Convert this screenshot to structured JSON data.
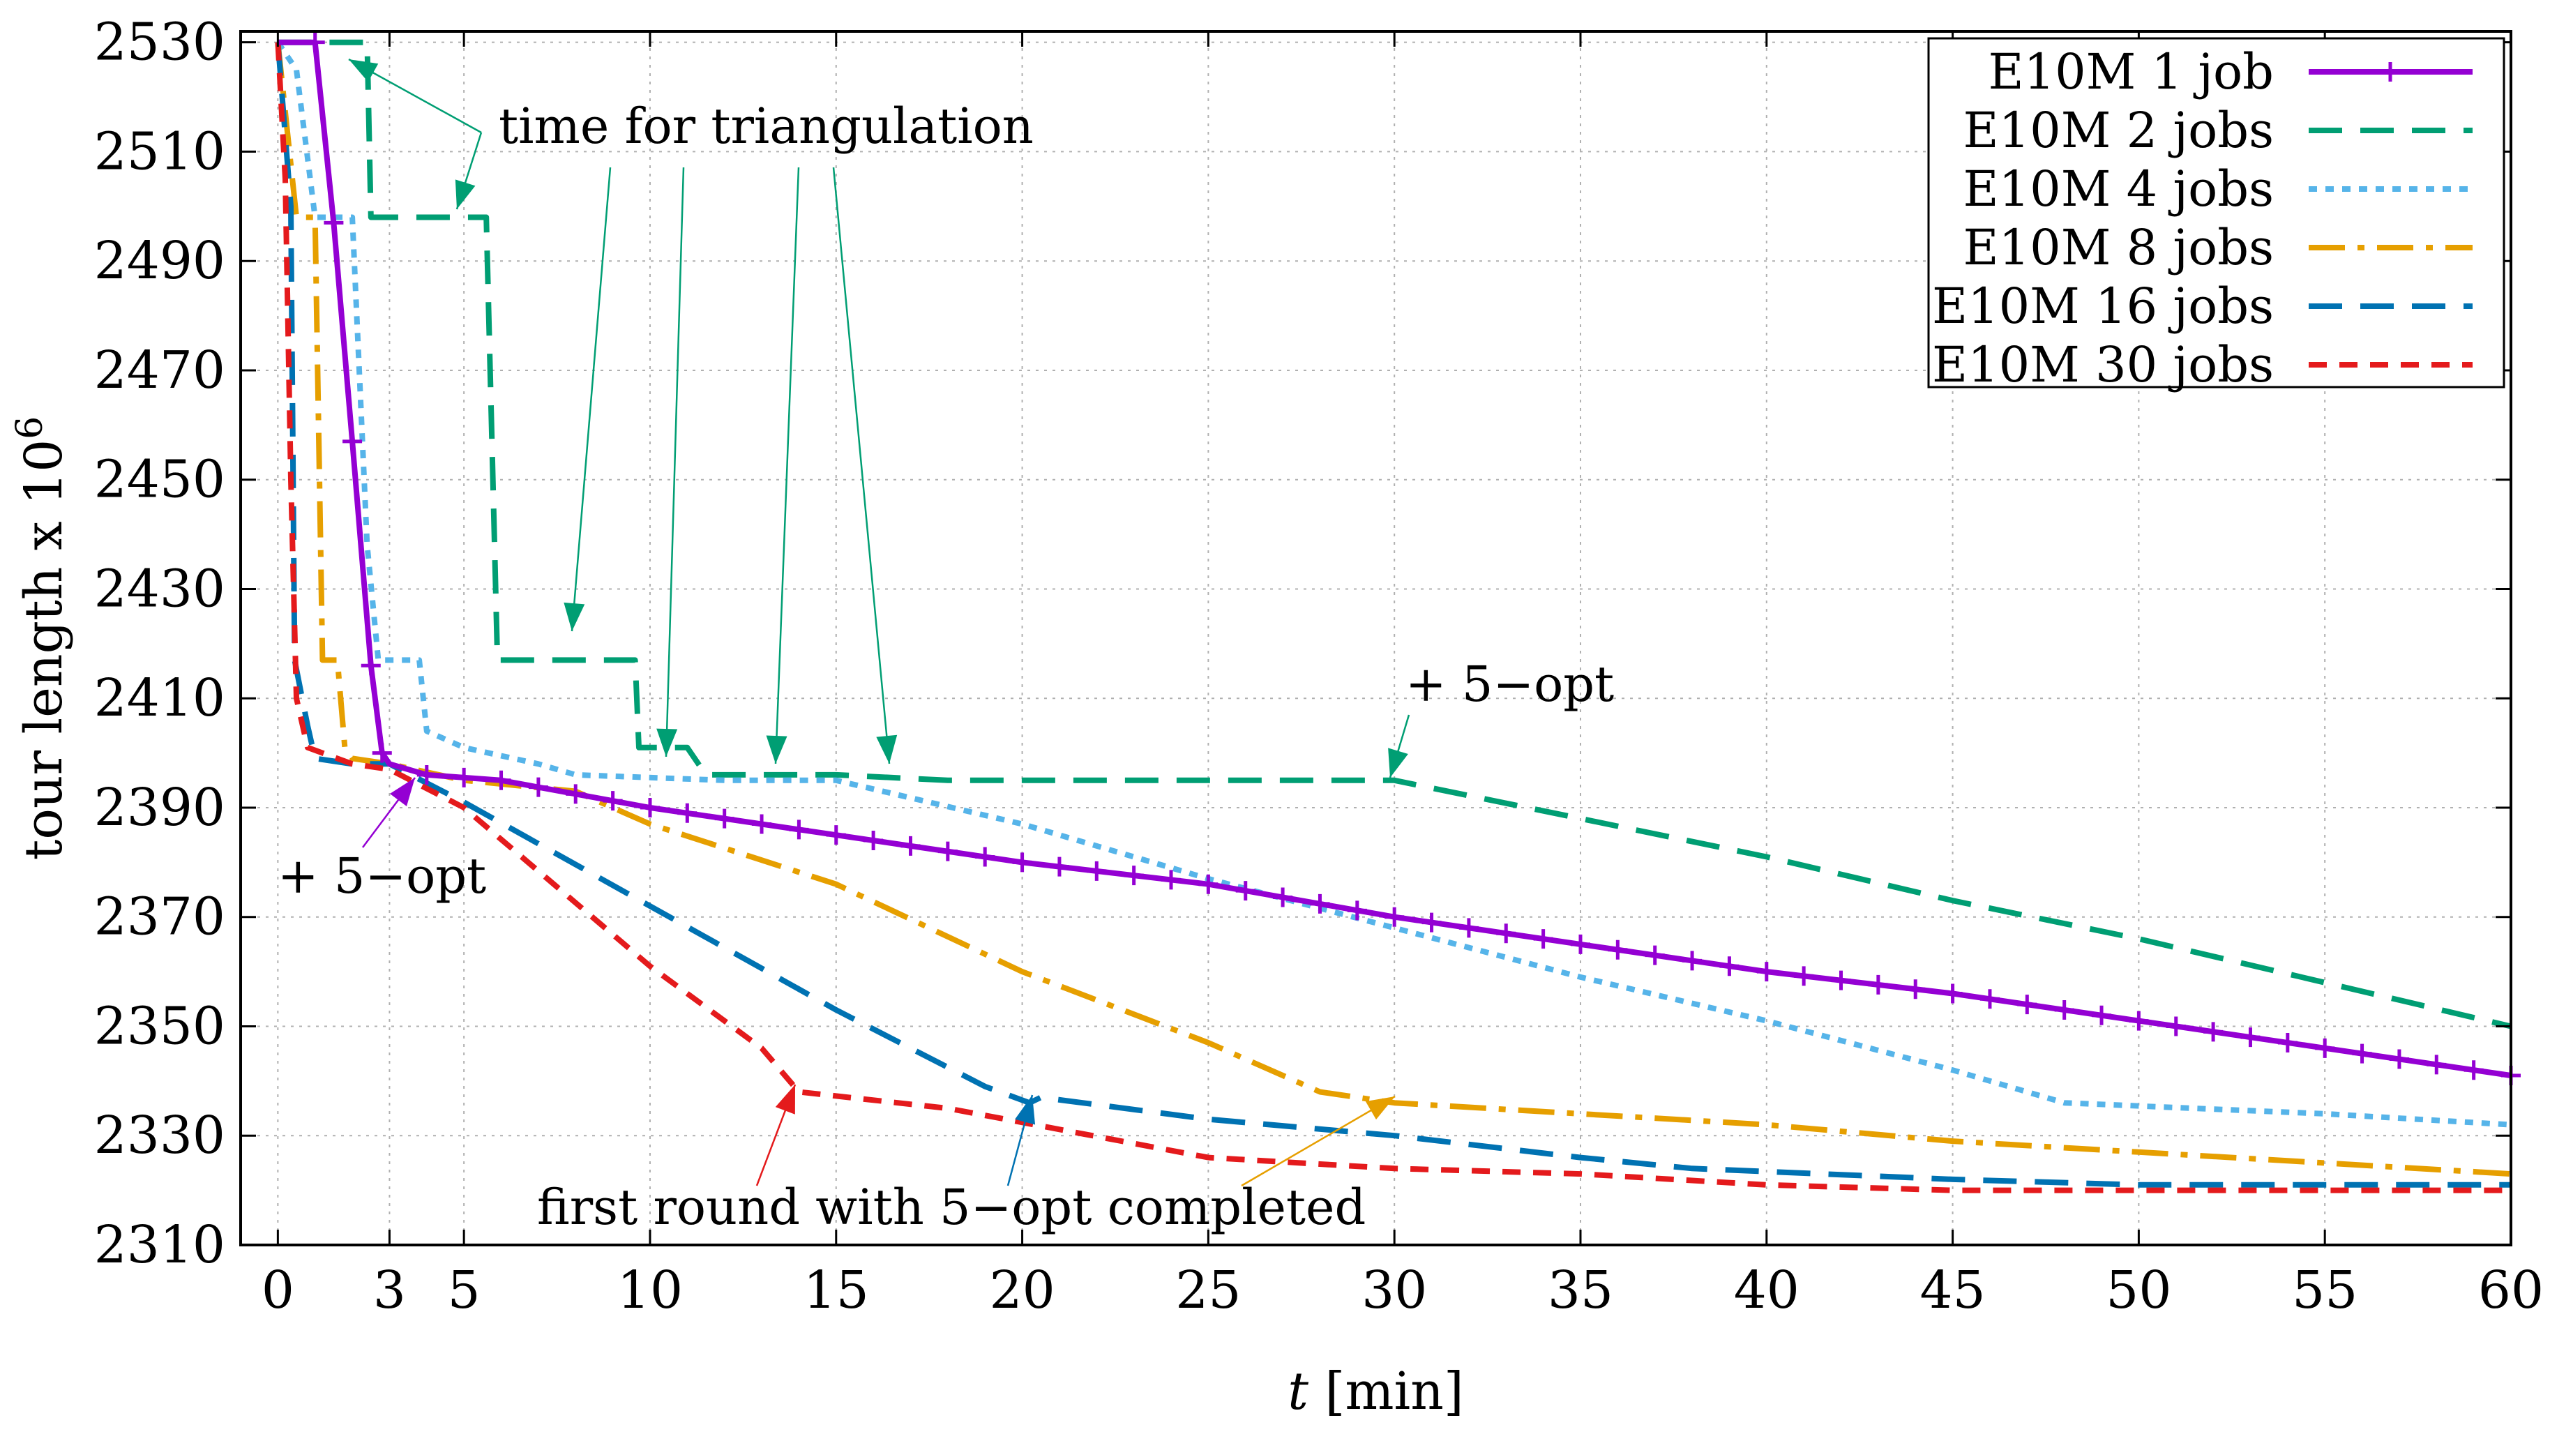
{
  "chart_data": {
    "type": "line",
    "xlabel_var": "t",
    "xlabel_unit": " [min]",
    "ylabel": "tour length x 10",
    "ylabel_sup": "6",
    "xlim": [
      -1,
      60
    ],
    "ylim": [
      2310,
      2532
    ],
    "grid": true,
    "legend_position": "top-right",
    "x_ticks": [
      0,
      3,
      5,
      10,
      15,
      20,
      25,
      30,
      35,
      40,
      45,
      50,
      55,
      60
    ],
    "y_ticks": [
      2310,
      2330,
      2350,
      2370,
      2390,
      2410,
      2430,
      2450,
      2470,
      2490,
      2510,
      2530
    ],
    "series": [
      {
        "name": "E10M  1 job",
        "color": "#9400d3",
        "dash": "solid",
        "points": [
          [
            0,
            2530
          ],
          [
            1,
            2530
          ],
          [
            1.5,
            2497
          ],
          [
            2,
            2457
          ],
          [
            2.5,
            2416
          ],
          [
            2.8,
            2400
          ],
          [
            3,
            2398
          ],
          [
            4,
            2396
          ],
          [
            6,
            2395
          ],
          [
            10,
            2390
          ],
          [
            15,
            2385
          ],
          [
            20,
            2380
          ],
          [
            25,
            2376
          ],
          [
            30,
            2370
          ],
          [
            35,
            2365
          ],
          [
            40,
            2360
          ],
          [
            45,
            2356
          ],
          [
            50,
            2351
          ],
          [
            55,
            2346
          ],
          [
            60,
            2341
          ]
        ]
      },
      {
        "name": "E10M  2 jobs",
        "color": "#009e73",
        "dash": "long-dash",
        "points": [
          [
            0,
            2530
          ],
          [
            2.4,
            2530
          ],
          [
            2.5,
            2498
          ],
          [
            5.6,
            2498
          ],
          [
            5.9,
            2417
          ],
          [
            9.6,
            2417
          ],
          [
            9.7,
            2401
          ],
          [
            11,
            2401
          ],
          [
            11.5,
            2396
          ],
          [
            15,
            2396
          ],
          [
            18,
            2395
          ],
          [
            25,
            2395
          ],
          [
            30,
            2395
          ],
          [
            35,
            2388
          ],
          [
            40,
            2381
          ],
          [
            45,
            2373
          ],
          [
            50,
            2366
          ],
          [
            55,
            2358
          ],
          [
            60,
            2350
          ]
        ]
      },
      {
        "name": "E10M  4 jobs",
        "color": "#56b4e9",
        "dash": "dotted",
        "points": [
          [
            0,
            2530
          ],
          [
            0.5,
            2525
          ],
          [
            1,
            2498
          ],
          [
            2,
            2498
          ],
          [
            2.4,
            2438
          ],
          [
            2.7,
            2417
          ],
          [
            3.8,
            2417
          ],
          [
            4,
            2404
          ],
          [
            5,
            2401
          ],
          [
            7,
            2398
          ],
          [
            8,
            2396
          ],
          [
            12,
            2395
          ],
          [
            15,
            2395
          ],
          [
            20,
            2387
          ],
          [
            25,
            2377
          ],
          [
            30,
            2368
          ],
          [
            35,
            2359
          ],
          [
            40,
            2351
          ],
          [
            45,
            2342
          ],
          [
            48,
            2336
          ],
          [
            55,
            2334
          ],
          [
            60,
            2332
          ]
        ]
      },
      {
        "name": "E10M  8 jobs",
        "color": "#e69f00",
        "dash": "dash-dot",
        "points": [
          [
            0,
            2530
          ],
          [
            0.5,
            2498
          ],
          [
            1,
            2498
          ],
          [
            1.2,
            2417
          ],
          [
            1.6,
            2417
          ],
          [
            1.8,
            2401
          ],
          [
            2,
            2399
          ],
          [
            3,
            2398
          ],
          [
            5,
            2395
          ],
          [
            8,
            2393
          ],
          [
            10,
            2387
          ],
          [
            15,
            2376
          ],
          [
            20,
            2360
          ],
          [
            25,
            2347
          ],
          [
            28,
            2338
          ],
          [
            30,
            2336
          ],
          [
            35,
            2334
          ],
          [
            40,
            2332
          ],
          [
            45,
            2329
          ],
          [
            50,
            2327
          ],
          [
            55,
            2325
          ],
          [
            60,
            2323
          ]
        ]
      },
      {
        "name": "E10M 16 jobs",
        "color": "#0072b2",
        "dash": "long-dash",
        "points": [
          [
            0,
            2530
          ],
          [
            0.35,
            2500
          ],
          [
            0.45,
            2417
          ],
          [
            0.8,
            2405
          ],
          [
            1,
            2399
          ],
          [
            2,
            2398
          ],
          [
            3,
            2398
          ],
          [
            5,
            2391
          ],
          [
            10,
            2372
          ],
          [
            15,
            2353
          ],
          [
            19,
            2339
          ],
          [
            20.2,
            2336
          ],
          [
            20.5,
            2337
          ],
          [
            25,
            2333
          ],
          [
            30,
            2330
          ],
          [
            35,
            2326
          ],
          [
            38,
            2324
          ],
          [
            45,
            2322
          ],
          [
            50,
            2321
          ],
          [
            55,
            2321
          ],
          [
            60,
            2321
          ]
        ]
      },
      {
        "name": "E10M 30 jobs",
        "color": "#e41a1c",
        "dash": "dashed",
        "points": [
          [
            0,
            2530
          ],
          [
            0.2,
            2505
          ],
          [
            0.35,
            2450
          ],
          [
            0.5,
            2410
          ],
          [
            0.8,
            2401
          ],
          [
            2,
            2398
          ],
          [
            3,
            2397
          ],
          [
            5,
            2390
          ],
          [
            10,
            2361
          ],
          [
            13,
            2346
          ],
          [
            14,
            2338
          ],
          [
            18,
            2335
          ],
          [
            25,
            2326
          ],
          [
            30,
            2324
          ],
          [
            35,
            2323
          ],
          [
            40,
            2321
          ],
          [
            45,
            2320
          ],
          [
            50,
            2320
          ],
          [
            55,
            2320
          ],
          [
            60,
            2320
          ]
        ]
      }
    ],
    "annotations": {
      "triangulation": "time for triangulation",
      "five_opt_right": "+ 5−opt",
      "five_opt_left": "+ 5−opt",
      "first_round": "first round with 5−opt completed"
    }
  }
}
